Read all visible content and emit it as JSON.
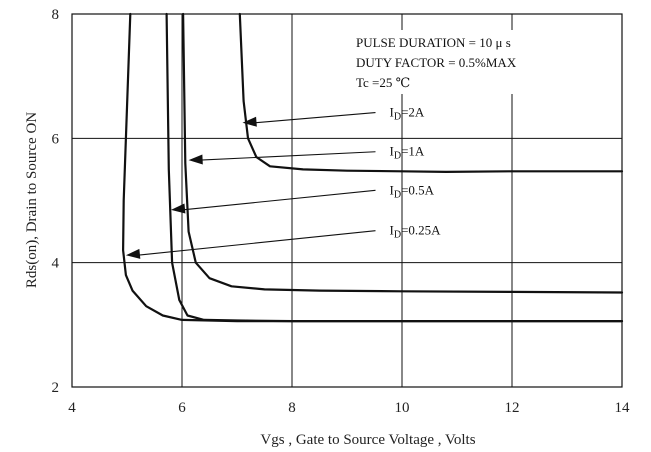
{
  "chart_data": {
    "type": "line",
    "xlabel": "Vgs , Gate to Source Voltage , Volts",
    "ylabel": "Rds(on), Drain to Source ON",
    "xlim": [
      4,
      14
    ],
    "ylim": [
      2,
      8
    ],
    "xticks": [
      4,
      6,
      8,
      10,
      12,
      14
    ],
    "yticks": [
      2,
      4,
      6,
      8
    ],
    "grid": true,
    "notes": [
      "PULSE    DURATION = 10 μ s",
      "DUTY    FACTOR = 0.5%MAX",
      "Tc =25  ℃"
    ],
    "series": [
      {
        "name": "ID=2A",
        "label_main": "I",
        "label_sub": "D",
        "label_rest": "=2A",
        "label_pos": [
          9.7,
          6.35
        ],
        "arrow_to": [
          7.1,
          6.25
        ],
        "x": [
          7.05,
          7.12,
          7.2,
          7.35,
          7.6,
          8.2,
          9.0,
          10.0,
          10.8,
          12.0,
          14.0
        ],
        "y": [
          8.0,
          6.6,
          6.0,
          5.7,
          5.55,
          5.5,
          5.48,
          5.47,
          5.46,
          5.47,
          5.47
        ]
      },
      {
        "name": "ID=1A",
        "label_main": "I",
        "label_sub": "D",
        "label_rest": "=1A",
        "label_pos": [
          9.7,
          5.72
        ],
        "arrow_to": [
          6.12,
          5.65
        ],
        "x": [
          6.02,
          6.06,
          6.12,
          6.25,
          6.5,
          6.9,
          7.5,
          8.5,
          10.0,
          12.0,
          14.0
        ],
        "y": [
          8.0,
          5.6,
          4.5,
          4.0,
          3.75,
          3.62,
          3.57,
          3.55,
          3.54,
          3.53,
          3.52
        ]
      },
      {
        "name": "ID=0.5A",
        "label_main": "I",
        "label_sub": "D",
        "label_rest": "=0.5A",
        "label_pos": [
          9.7,
          5.1
        ],
        "arrow_to": [
          5.8,
          4.85
        ],
        "x": [
          5.72,
          5.76,
          5.82,
          5.95,
          6.1,
          6.4,
          7.0,
          8.0,
          10.0,
          12.0,
          14.0
        ],
        "y": [
          8.0,
          5.5,
          4.0,
          3.4,
          3.15,
          3.08,
          3.07,
          3.06,
          3.06,
          3.06,
          3.06
        ]
      },
      {
        "name": "ID=0.25A",
        "label_main": "I",
        "label_sub": "D",
        "label_rest": "=0.25A",
        "label_pos": [
          9.7,
          4.45
        ],
        "arrow_to": [
          4.98,
          4.12
        ],
        "x": [
          5.06,
          5.0,
          4.94,
          4.93,
          4.98,
          5.1,
          5.35,
          5.65,
          6.0,
          7.0,
          8.0,
          10.0,
          12.0,
          14.0
        ],
        "y": [
          8.0,
          6.5,
          5.0,
          4.2,
          3.8,
          3.55,
          3.3,
          3.15,
          3.08,
          3.06,
          3.06,
          3.06,
          3.06,
          3.06
        ]
      }
    ]
  }
}
